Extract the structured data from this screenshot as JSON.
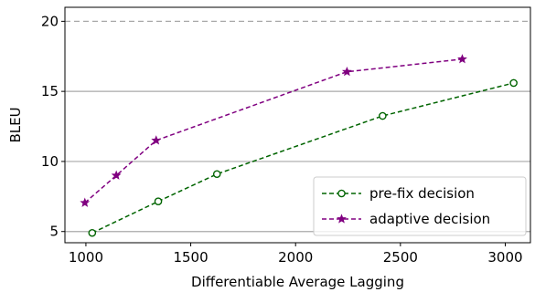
{
  "chart_data": {
    "type": "line",
    "xlabel": "Differentiable Average Lagging",
    "ylabel": "BLEU",
    "xlim": [
      900,
      3120
    ],
    "ylim": [
      4.2,
      21.0
    ],
    "xticks": [
      1000,
      1500,
      2000,
      2500,
      3000
    ],
    "yticks": [
      5,
      10,
      15,
      20
    ],
    "grid": "horizontal, y = 5, 10, 15 solid gray; y = 20 dashed gray",
    "legend_position": "lower-right",
    "series": [
      {
        "name": "pre-fix decision",
        "color": "#006400",
        "marker": "circle",
        "linestyle": "dashed",
        "x": [
          1030,
          1345,
          1625,
          2415,
          3040
        ],
        "y": [
          4.9,
          7.15,
          9.1,
          13.25,
          15.6
        ]
      },
      {
        "name": "adaptive decision",
        "color": "#800080",
        "marker": "star",
        "linestyle": "dashed",
        "x": [
          995,
          1145,
          1335,
          2245,
          2795
        ],
        "y": [
          7.05,
          9.0,
          11.5,
          16.4,
          17.3
        ]
      }
    ]
  }
}
